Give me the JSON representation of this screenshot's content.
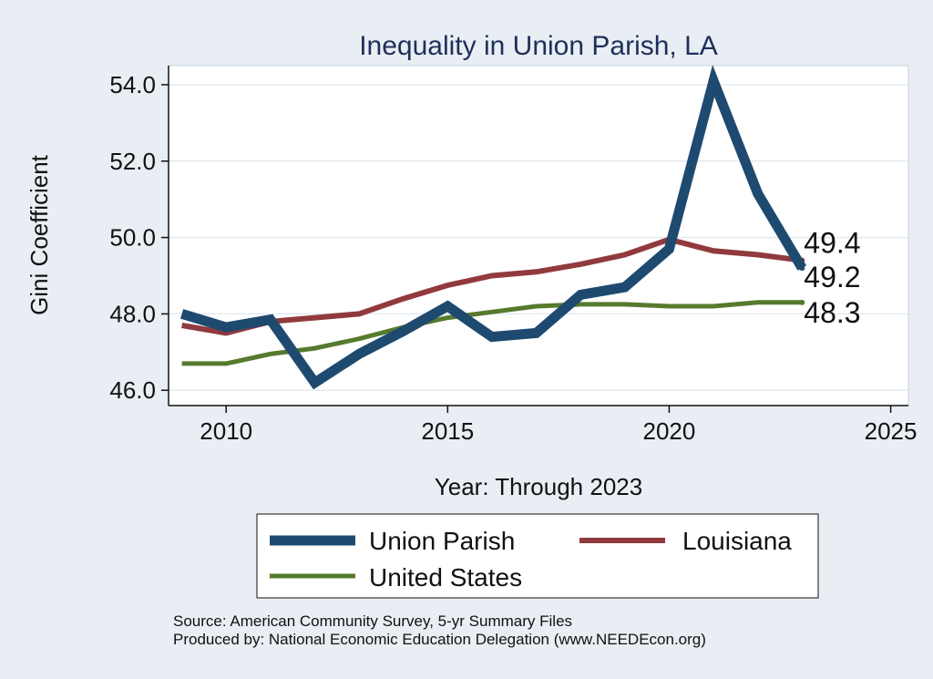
{
  "chart_data": {
    "type": "line",
    "title": "Inequality in Union Parish, LA",
    "xlabel": "Year: Through 2023",
    "ylabel": "Gini Coefficient",
    "xlim": [
      2008.7,
      2025.4
    ],
    "ylim": [
      45.6,
      54.5
    ],
    "x_ticks": [
      2010,
      2015,
      2020,
      2025
    ],
    "y_ticks": [
      46.0,
      48.0,
      50.0,
      52.0,
      54.0
    ],
    "y_tick_labels": [
      "46.0",
      "48.0",
      "50.0",
      "52.0",
      "54.0"
    ],
    "x": [
      2009,
      2010,
      2011,
      2012,
      2013,
      2014,
      2015,
      2016,
      2017,
      2018,
      2019,
      2020,
      2021,
      2022,
      2023
    ],
    "series": [
      {
        "name": "Union Parish",
        "color": "#1f4a70",
        "values": [
          48.0,
          47.65,
          47.85,
          46.2,
          46.95,
          47.55,
          48.2,
          47.4,
          47.5,
          48.5,
          48.7,
          49.7,
          54.1,
          51.15,
          49.2
        ],
        "end_label": "49.2"
      },
      {
        "name": "Louisiana",
        "color": "#913a3e",
        "values": [
          47.7,
          47.5,
          47.8,
          47.9,
          48.0,
          48.4,
          48.75,
          49.0,
          49.1,
          49.3,
          49.55,
          49.95,
          49.65,
          49.55,
          49.4
        ],
        "end_label": "49.4"
      },
      {
        "name": "United States",
        "color": "#567a2e",
        "values": [
          46.7,
          46.7,
          46.95,
          47.1,
          47.35,
          47.65,
          47.9,
          48.05,
          48.2,
          48.25,
          48.25,
          48.2,
          48.2,
          48.3,
          48.3
        ],
        "end_label": "48.3"
      }
    ],
    "grid": true,
    "legend_position": "bottom"
  },
  "source": {
    "line1": "Source: American Community Survey, 5-yr Summary Files",
    "line2": "Produced by: National Economic Education Delegation (www.NEEDEcon.org)"
  }
}
